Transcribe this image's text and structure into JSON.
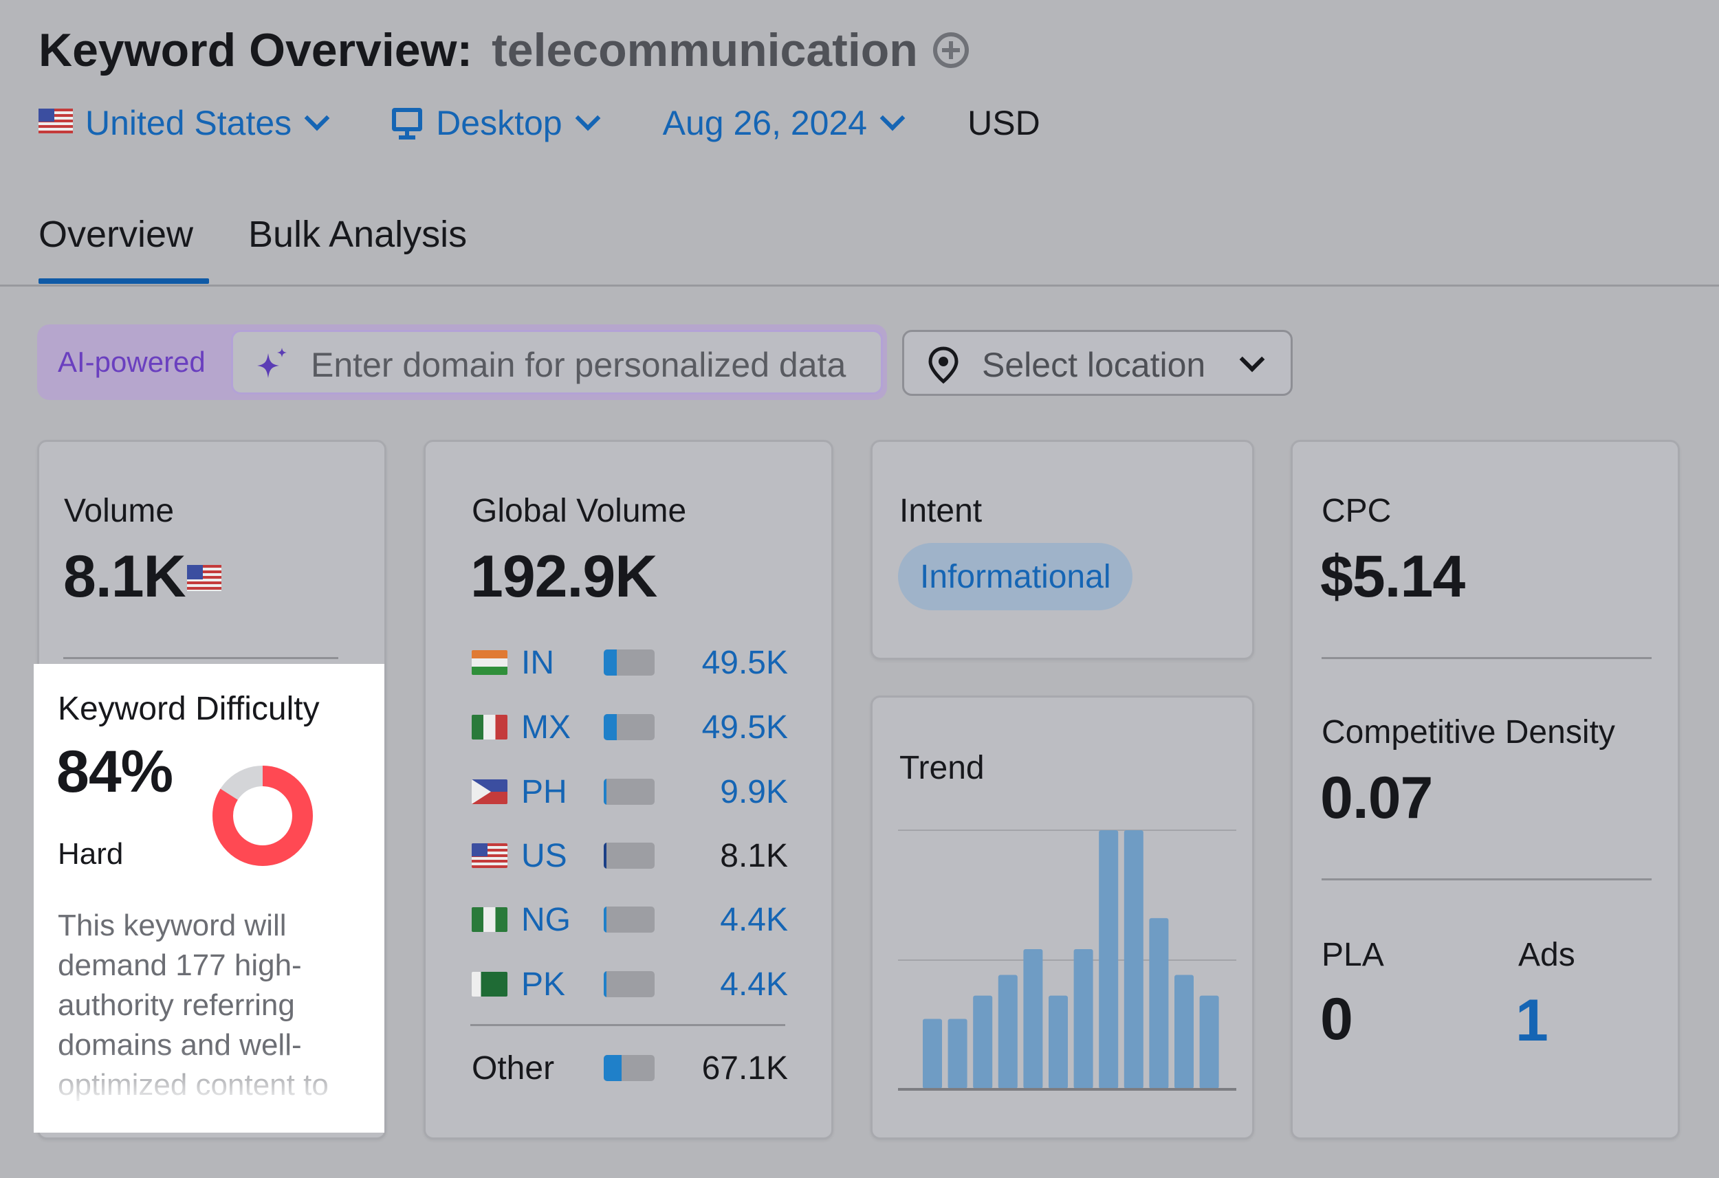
{
  "header": {
    "title": "Keyword Overview:",
    "keyword": "telecommunication",
    "add_icon": "plus-circle-icon"
  },
  "filters": {
    "country": "United States",
    "device": "Desktop",
    "date": "Aug 26, 2024",
    "currency": "USD"
  },
  "tabs": [
    {
      "label": "Overview",
      "active": true
    },
    {
      "label": "Bulk Analysis",
      "active": false
    }
  ],
  "ai_bar": {
    "label": "AI-powered",
    "placeholder": "Enter domain for personalized data",
    "location_placeholder": "Select location"
  },
  "volume": {
    "label": "Volume",
    "value": "8.1K"
  },
  "keyword_difficulty": {
    "label": "Keyword Difficulty",
    "value": "84%",
    "percent": 84,
    "level": "Hard",
    "description": "This keyword will demand 177 high-authority referring domains and well-optimized content to",
    "color": "#ff4953"
  },
  "global_volume": {
    "label": "Global Volume",
    "value": "192.9K",
    "countries": [
      {
        "code": "IN",
        "value": "49.5K",
        "share": 0.26,
        "highlight": true
      },
      {
        "code": "MX",
        "value": "49.5K",
        "share": 0.26,
        "highlight": true
      },
      {
        "code": "PH",
        "value": "9.9K",
        "share": 0.05,
        "highlight": true
      },
      {
        "code": "US",
        "value": "8.1K",
        "share": 0.04,
        "highlight": false
      },
      {
        "code": "NG",
        "value": "4.4K",
        "share": 0.03,
        "highlight": true
      },
      {
        "code": "PK",
        "value": "4.4K",
        "share": 0.03,
        "highlight": true
      }
    ],
    "other": {
      "label": "Other",
      "value": "67.1K",
      "share": 0.35
    }
  },
  "intent": {
    "label": "Intent",
    "value": "Informational"
  },
  "trend": {
    "label": "Trend",
    "values": [
      0.27,
      0.27,
      0.36,
      0.44,
      0.54,
      0.36,
      0.54,
      1.0,
      1.0,
      0.66,
      0.44,
      0.36
    ]
  },
  "cpc": {
    "label": "CPC",
    "value": "$5.14"
  },
  "competitive_density": {
    "label": "Competitive Density",
    "value": "0.07"
  },
  "pla": {
    "label": "PLA",
    "value": "0"
  },
  "ads": {
    "label": "Ads",
    "value": "1"
  },
  "colors": {
    "link": "#1565b4",
    "bar_fill": "#1f80c9",
    "trend_bar": "#6f9cc4",
    "kd_donut": "#ff4953",
    "ai_purple": "#6a3fbf"
  }
}
